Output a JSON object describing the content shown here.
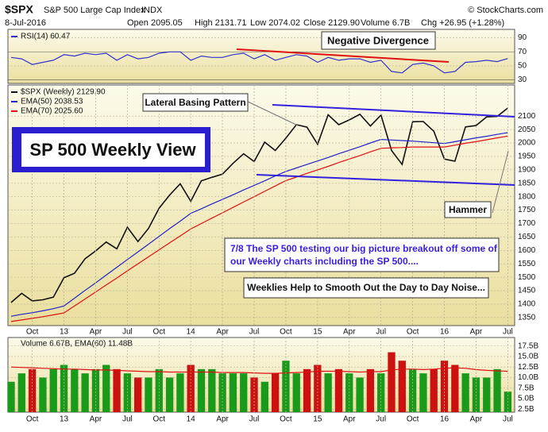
{
  "header": {
    "symbol": "$SPX",
    "name": "S&P 500 Large Cap Index",
    "exchange": "INDX",
    "copyright": "© StockCharts.com",
    "date": "8-Jul-2016",
    "open": "Open 2095.05",
    "high": "High 2131.71",
    "low": "Low 2074.02",
    "close": "Close 2129.90",
    "volume": "Volume 6.7B",
    "change": "Chg +26.95 (+1.28%)"
  },
  "chart_data": [
    {
      "type": "line",
      "panel": "rsi",
      "ylim": [
        25,
        102
      ],
      "yticks": [
        30,
        50,
        70,
        90
      ],
      "grid": true,
      "annotations": [
        "Negative Divergence"
      ],
      "series": [
        {
          "name": "RSI(14) 60.47",
          "color": "#3333cc",
          "values": [
            62,
            60,
            52,
            55,
            58,
            66,
            64,
            68,
            66,
            68,
            58,
            66,
            60,
            62,
            68,
            70,
            70,
            58,
            64,
            62,
            62,
            66,
            68,
            60,
            66,
            58,
            62,
            66,
            64,
            55,
            62,
            58,
            60,
            60,
            55,
            58,
            42,
            40,
            52,
            54,
            50,
            40,
            42,
            55,
            56,
            58,
            56,
            60.47
          ]
        }
      ]
    },
    {
      "type": "line",
      "panel": "price",
      "categories": [
        null,
        null,
        "Oct",
        null,
        null,
        "13",
        null,
        null,
        "Apr",
        null,
        null,
        "Jul",
        null,
        null,
        "Oct",
        null,
        null,
        "14",
        null,
        null,
        "Apr",
        null,
        null,
        "Jul",
        null,
        null,
        "Oct",
        null,
        null,
        "15",
        null,
        null,
        "Apr",
        null,
        null,
        "Jul",
        null,
        null,
        "Oct",
        null,
        null,
        "16",
        null,
        null,
        "Apr",
        null,
        null,
        "Jul"
      ],
      "ylim": [
        1320,
        2216
      ],
      "yticks": [
        1350,
        1400,
        1450,
        1500,
        1550,
        1600,
        1650,
        1700,
        1750,
        1800,
        1850,
        1900,
        1950,
        2000,
        2050,
        2100
      ],
      "grid": true,
      "annotations": [
        "Lateral Basing Pattern",
        "SP 500 Weekly View",
        "Hammer",
        "Weeklies Help to Smooth Out the Day to Day Noise..."
      ],
      "note_lines": [
        "7/8  The SP 500 testing our big picture breakout off some of",
        "our Weekly charts including the SP 500...."
      ],
      "series": [
        {
          "name": "$SPX (Weekly) 2129.90",
          "color": "#111111",
          "values": [
            1406,
            1440,
            1412,
            1416,
            1426,
            1498,
            1515,
            1569,
            1598,
            1631,
            1606,
            1686,
            1633,
            1682,
            1757,
            1806,
            1848,
            1783,
            1859,
            1872,
            1884,
            1924,
            1960,
            1931,
            2003,
            1972,
            2018,
            2068,
            2059,
            1995,
            2105,
            2068,
            2086,
            2107,
            2063,
            2104,
            1972,
            1920,
            2079,
            2080,
            2044,
            1940,
            1932,
            2060,
            2065,
            2097,
            2099,
            2129.9
          ]
        },
        {
          "name": "EMA(50) 2038.53",
          "color": "#2222cc",
          "values": [
            1355,
            1362,
            1368,
            1375,
            1383,
            1393,
            1422,
            1451,
            1479,
            1508,
            1537,
            1566,
            1594,
            1623,
            1652,
            1681,
            1709,
            1738,
            1755,
            1773,
            1790,
            1807,
            1825,
            1842,
            1859,
            1877,
            1894,
            1907,
            1920,
            1933,
            1946,
            1960,
            1973,
            1986,
            2000,
            2013,
            2011,
            2009,
            2007,
            2004,
            2001,
            1998,
            2005,
            2012,
            2019,
            2025,
            2032,
            2038.53
          ]
        },
        {
          "name": "EMA(70) 2025.60",
          "color": "#dd1111",
          "values": [
            1335,
            1341,
            1347,
            1353,
            1360,
            1367,
            1393,
            1419,
            1445,
            1471,
            1497,
            1524,
            1550,
            1576,
            1602,
            1628,
            1654,
            1680,
            1700,
            1720,
            1740,
            1760,
            1780,
            1800,
            1820,
            1840,
            1860,
            1873,
            1887,
            1900,
            1913,
            1927,
            1940,
            1953,
            1967,
            1980,
            1982,
            1983,
            1985,
            1985,
            1985,
            1985,
            1992,
            1999,
            2005,
            2012,
            2019,
            2025.6
          ]
        }
      ]
    },
    {
      "type": "bar",
      "panel": "volume",
      "title": "Volume 6.67B, EMA(60) 11.48B",
      "ylim": [
        1.8,
        19.5
      ],
      "yticks": [
        {
          "value": 2.5,
          "label": "2.5B"
        },
        {
          "value": 5,
          "label": "5.0B"
        },
        {
          "value": 7.5,
          "label": "7.5B"
        },
        {
          "value": 10,
          "label": "10.0B"
        },
        {
          "value": 12.5,
          "label": "12.5B"
        },
        {
          "value": 15,
          "label": "15.0B"
        },
        {
          "value": 17.5,
          "label": "17.5B"
        }
      ],
      "grid": true,
      "up_color": "#1a9a1a",
      "down_color": "#cc1111",
      "values": [
        9,
        11,
        12,
        10,
        12,
        13,
        12,
        11,
        12,
        13,
        12,
        11,
        10,
        10,
        12,
        10,
        11,
        13,
        12,
        12,
        11,
        11,
        11,
        10,
        9,
        11,
        14,
        11,
        12,
        13,
        11,
        12,
        11,
        10,
        12,
        11,
        16,
        14,
        12,
        11,
        12,
        14,
        13,
        11,
        10,
        10,
        12,
        6.67
      ],
      "ema": {
        "color": "#dd1111",
        "values": [
          12.5,
          12.4,
          12.3,
          12.2,
          12.1,
          12.0,
          12.0,
          11.9,
          11.8,
          11.8,
          11.7,
          11.6,
          11.5,
          11.4,
          11.4,
          11.3,
          11.3,
          11.3,
          11.3,
          11.3,
          11.2,
          11.2,
          11.2,
          11.1,
          11.0,
          11.0,
          11.1,
          11.2,
          11.3,
          11.5,
          11.5,
          11.5,
          11.4,
          11.3,
          11.4,
          11.4,
          11.8,
          12.0,
          12.0,
          11.9,
          12.0,
          12.2,
          12.3,
          12.2,
          11.9,
          11.7,
          11.6,
          11.48
        ]
      }
    }
  ]
}
